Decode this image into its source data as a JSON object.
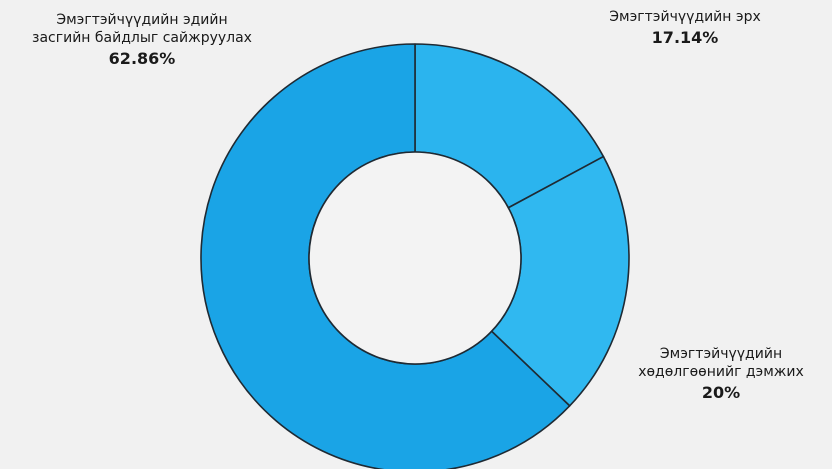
{
  "chart_data": {
    "type": "pie",
    "categories": [
      "Эмэгтэйчүүдийн эдийн засгийн байдлыг сайжруулах",
      "Эмэгтэйчүүдийн эрх",
      "Эмэгтэйчүүдийн хөдөлгөөнийг дэмжих"
    ],
    "values": [
      62.86,
      17.14,
      20
    ],
    "colors": [
      "#1aa4e6",
      "#2bb4ee",
      "#30b8f0"
    ],
    "slices": [
      {
        "label_lines": [
          "Эмэгтэйчүүдийн эдийн",
          "засгийн байдлыг сайжруулах"
        ],
        "percent_label": "62.86%",
        "value": 62.86
      },
      {
        "label_lines": [
          "Эмэгтэйчүүдийн эрх"
        ],
        "percent_label": "17.14%",
        "value": 17.14
      },
      {
        "label_lines": [
          "Эмэгтэйчүүдийн",
          "хөдөлгөөнийг дэмжих"
        ],
        "percent_label": "20%",
        "value": 20
      }
    ],
    "donut": true,
    "start": "12 o'clock",
    "direction": "clockwise",
    "legend": "none"
  }
}
